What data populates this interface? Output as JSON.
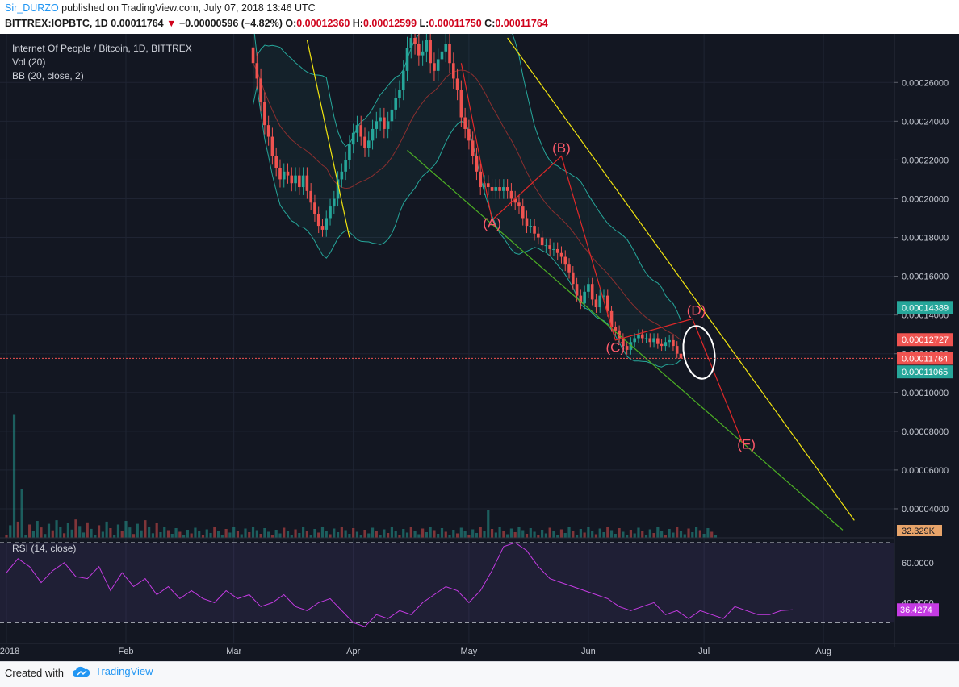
{
  "header": {
    "author": "Sir_DURZO",
    "published": "published on TradingView.com, July 07, 2018 13:46 UTC",
    "symbol": "BITTREX:IOPBTC, 1D",
    "last": "0.00011764",
    "change": "−0.00000596 (−4.82%)",
    "o_label": "O:",
    "o_value": "0.00012360",
    "h_label": "H:",
    "h_value": "0.00012599",
    "l_label": "L:",
    "l_value": "0.00011750",
    "c_label": "C:",
    "c_value": "0.00011764"
  },
  "legend": {
    "title": "Internet Of People / Bitcoin, 1D, BITTREX",
    "vol": "Vol (20)",
    "bb": "BB (20, close, 2)",
    "rsi": "RSI (14, close)"
  },
  "footer": {
    "created": "Created with",
    "brand": "TradingView"
  },
  "colors": {
    "bg": "#131722",
    "up": "#26a69a",
    "down": "#ef5350",
    "bb": "#26a69a",
    "yellow": "#f1e40f",
    "green": "#4caf24",
    "wave": "#e02929",
    "rsi": "#c53be3",
    "label": "#ff5a6a"
  },
  "chart_data": [
    {
      "type": "candlestick",
      "title": "Internet Of People / Bitcoin, 1D, BITTREX",
      "y_tick_labels": [
        "0.00004000",
        "0.00006000",
        "0.00008000",
        "0.00010000",
        "0.00012000",
        "0.00014000",
        "0.00016000",
        "0.00018000",
        "0.00020000",
        "0.00022000",
        "0.00024000",
        "0.00026000"
      ],
      "ylim": [
        2.5e-05,
        0.000283
      ],
      "x_tick_labels": [
        "2018",
        "Feb",
        "Mar",
        "Apr",
        "May",
        "Jun",
        "Jul",
        "Aug"
      ],
      "x_dates": [
        "2018-01-01",
        "2018-02-01",
        "2018-03-01",
        "2018-04-01",
        "2018-05-01",
        "2018-06-01",
        "2018-07-01",
        "2018-08-01"
      ],
      "price_badges": [
        {
          "text": "0.00014389",
          "value": 0.00014389,
          "color": "#26a69a"
        },
        {
          "text": "0.00012727",
          "value": 0.00012727,
          "color": "#ef5350"
        },
        {
          "text": "0.00011764",
          "value": 0.00011764,
          "color": "#ef5350"
        },
        {
          "text": "0.00011065",
          "value": 0.00011065,
          "color": "#26a69a"
        }
      ],
      "last_price": 0.00011764,
      "close_series": {
        "start_date": "2018-03-06",
        "values": [
          0.00027,
          0.000262,
          0.00025,
          0.000238,
          0.000232,
          0.000222,
          0.000216,
          0.00021,
          0.000214,
          0.000212,
          0.000208,
          0.000212,
          0.000206,
          0.000212,
          0.000204,
          0.000198,
          0.000192,
          0.000186,
          0.000184,
          0.00019,
          0.000196,
          0.0002,
          0.00021,
          0.000214,
          0.00022,
          0.000228,
          0.000234,
          0.000238,
          0.000232,
          0.000226,
          0.00023,
          0.000236,
          0.00024,
          0.000242,
          0.000236,
          0.00024,
          0.000246,
          0.000252,
          0.000256,
          0.000266,
          0.000278,
          0.000283,
          0.00028,
          0.000274,
          0.000276,
          0.000282,
          0.00027,
          0.000266,
          0.000272,
          0.000276,
          0.00028,
          0.00027,
          0.000262,
          0.000256,
          0.000242,
          0.000236,
          0.00023,
          0.000222,
          0.000214,
          0.000206,
          0.000208,
          0.000206,
          0.000204,
          0.000206,
          0.000204,
          0.000206,
          0.000204,
          0.0002,
          0.000198,
          0.000196,
          0.00019,
          0.000186,
          0.000186,
          0.000182,
          0.00018,
          0.000176,
          0.000176,
          0.000174,
          0.000174,
          0.000172,
          0.00017,
          0.000166,
          0.000162,
          0.000156,
          0.00015,
          0.000146,
          0.000152,
          0.000156,
          0.000148,
          0.000144,
          0.00015,
          0.00015,
          0.000142,
          0.000134,
          0.000132,
          0.000128,
          0.000124,
          0.000122,
          0.000126,
          0.000128,
          0.00013,
          0.000128,
          0.000128,
          0.000126,
          0.000128,
          0.000125,
          0.000124,
          0.000126,
          0.000127,
          0.000124,
          0.00012,
          0.00011764
        ]
      },
      "annotations": [
        {
          "text": "(A)",
          "date": "2018-05-07",
          "y": 0.000185
        },
        {
          "text": "(B)",
          "date": "2018-05-25",
          "y": 0.000224
        },
        {
          "text": "(C)",
          "date": "2018-06-08",
          "y": 0.000121
        },
        {
          "text": "(D)",
          "date": "2018-06-29",
          "y": 0.00014
        },
        {
          "text": "(E)",
          "date": "2018-07-12",
          "y": 7.1e-05
        }
      ],
      "wave_path": [
        {
          "date": "2018-04-29",
          "y": 0.00027
        },
        {
          "date": "2018-05-07",
          "y": 0.000189
        },
        {
          "date": "2018-05-25",
          "y": 0.000222
        },
        {
          "date": "2018-06-08",
          "y": 0.000127
        },
        {
          "date": "2018-06-28",
          "y": 0.000138
        },
        {
          "date": "2018-07-11",
          "y": 7.4e-05
        }
      ],
      "trendlines": [
        {
          "color": "yellow",
          "from": {
            "date": "2018-03-20",
            "y": 0.000282
          },
          "to": {
            "date": "2018-03-31",
            "y": 0.00018
          }
        },
        {
          "color": "yellow",
          "from": {
            "date": "2018-05-11",
            "y": 0.000283
          },
          "to": {
            "date": "2018-08-09",
            "y": 3.4e-05
          }
        },
        {
          "color": "green",
          "from": {
            "date": "2018-04-15",
            "y": 0.000225
          },
          "to": {
            "date": "2018-08-06",
            "y": 2.9e-05
          }
        }
      ],
      "legend": [
        "Vol (20)",
        "BB (20, close, 2)"
      ]
    },
    {
      "type": "line",
      "title": "RSI (14, close)",
      "y_tick_labels": [
        "60.0000",
        "40.0000"
      ],
      "ylim": [
        20,
        72
      ],
      "bands": [
        70,
        30
      ],
      "last_value_text": "36.4274",
      "last_value": 36.4274,
      "start_date": "2018-01-01",
      "step_days": 3,
      "values": [
        55,
        62,
        58,
        50,
        56,
        60,
        53,
        52,
        58,
        46,
        55,
        48,
        52,
        44,
        48,
        42,
        46,
        42,
        40,
        46,
        42,
        44,
        38,
        40,
        44,
        38,
        36,
        40,
        42,
        36,
        30,
        28,
        34,
        32,
        36,
        34,
        40,
        44,
        48,
        46,
        40,
        46,
        56,
        68,
        70,
        66,
        58,
        52,
        50,
        48,
        46,
        44,
        42,
        38,
        36,
        38,
        40,
        34,
        36,
        32,
        36,
        34,
        32,
        38,
        36,
        34,
        34,
        36,
        36.4274
      ]
    },
    {
      "type": "bar",
      "title": "Vol (20)",
      "last_value_text": "32.329K"
    }
  ]
}
